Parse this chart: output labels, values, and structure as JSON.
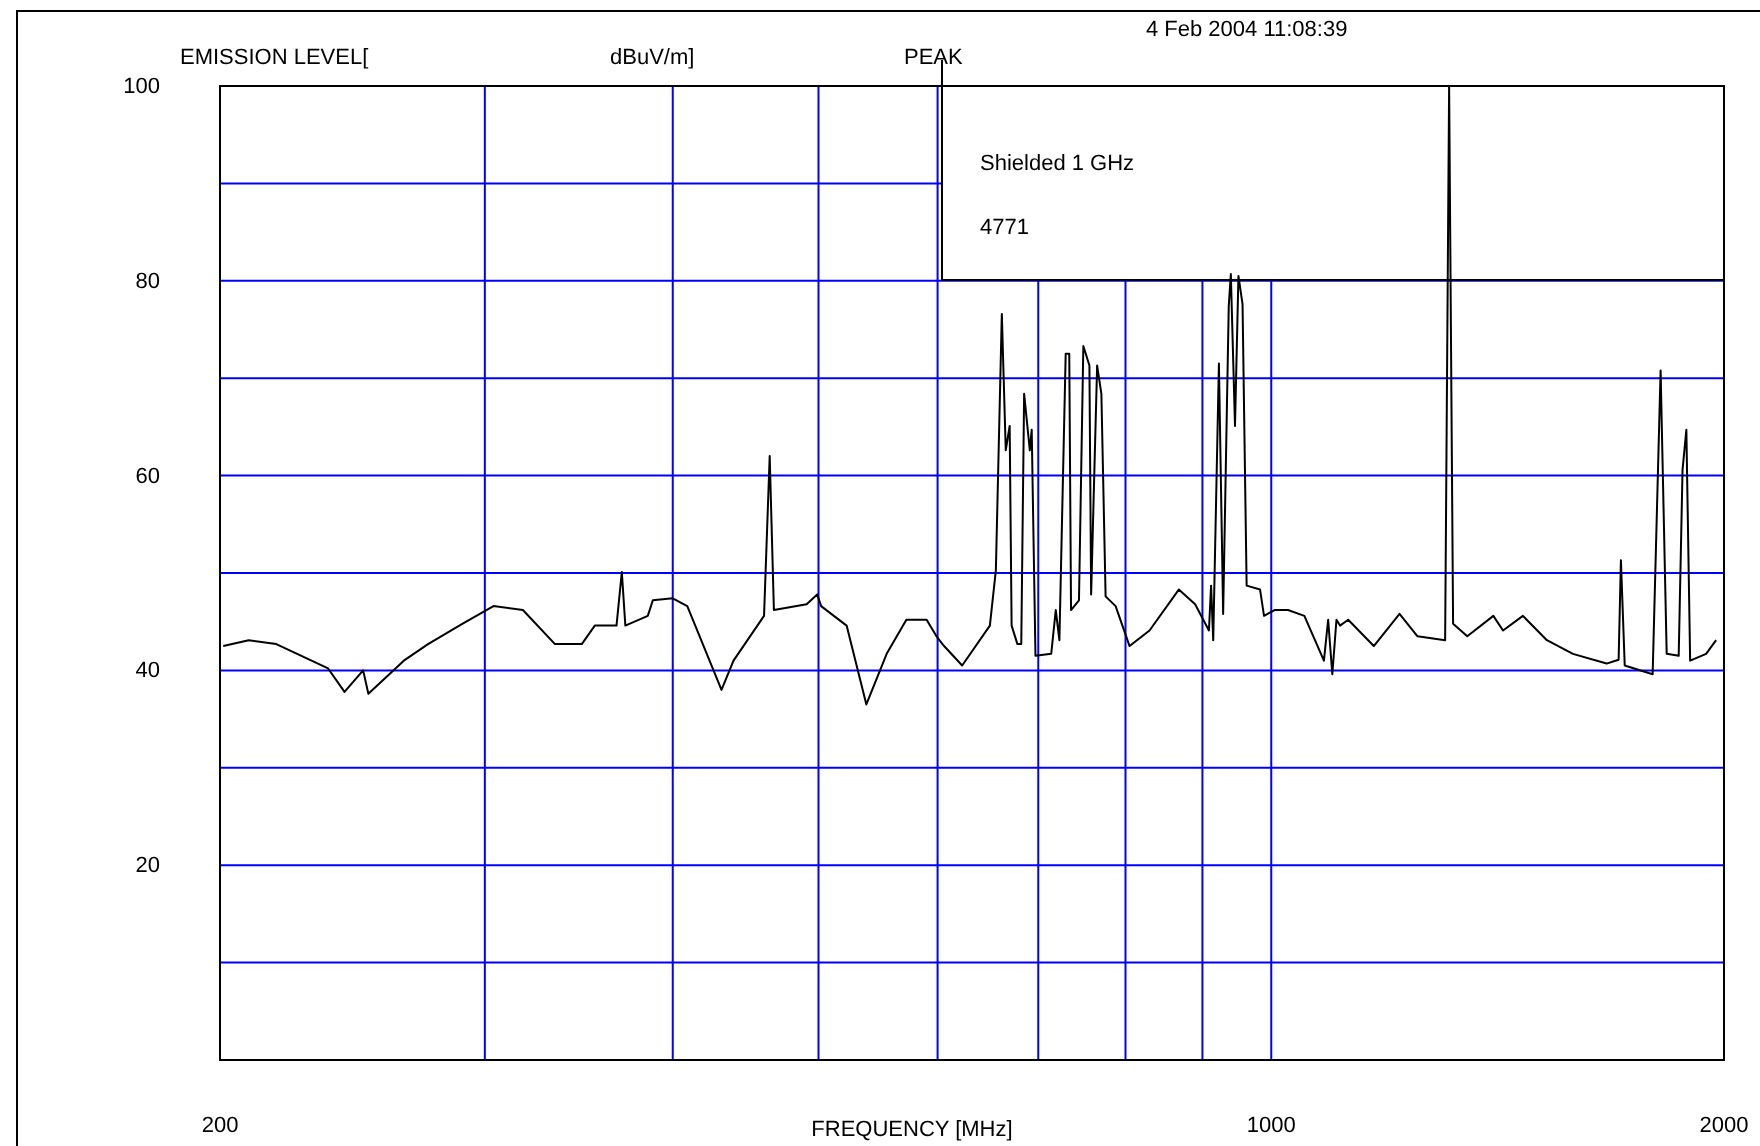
{
  "chart_data": {
    "type": "line",
    "ylabel": "EMISSION LEVEL[",
    "xlabel": "FREQUENCY [MHz]",
    "annotations": [
      "dBuV/m]",
      "PEAK",
      "4 Feb 2004  11:08:39",
      "Shielded 1 GHz",
      "4771"
    ],
    "log": "x",
    "grid": true,
    "xlim": [
      200,
      2000
    ],
    "ylim": [
      0,
      100
    ],
    "xticks": [
      200,
      {
        "value": 300,
        "label": null
      },
      {
        "value": 400,
        "label": null
      },
      {
        "value": 500,
        "label": null
      },
      {
        "value": 600,
        "label": null
      },
      {
        "value": 700,
        "label": null
      },
      {
        "value": 800,
        "label": null
      },
      {
        "value": 900,
        "label": null
      },
      1000,
      2000
    ],
    "yticks": [
      {
        "value": 10,
        "label": null
      },
      20,
      {
        "value": 30,
        "label": null
      },
      40,
      {
        "value": 50,
        "label": null
      },
      60,
      {
        "value": 70,
        "label": null
      },
      80,
      {
        "value": 90,
        "label": null
      },
      100
    ],
    "series": [
      {
        "color": "#000000",
        "x": [
          201,
          209,
          218,
          236,
          242,
          249,
          251,
          265,
          275,
          290,
          304,
          318,
          334,
          348,
          355,
          367,
          370,
          372,
          385,
          388,
          400,
          409,
          431,
          439,
          460,
          464,
          467,
          491,
          499,
          502,
          522,
          538,
          555,
          572,
          590,
          599,
          606,
          623,
          650,
          656,
          662,
          666,
          670,
          672,
          678,
          682,
          685,
          691,
          693,
          697,
          714,
          719,
          723,
          730,
          734,
          736,
          745,
          750,
          757,
          759,
          766,
          771,
          776,
          788,
          805,
          830,
          868,
          890,
          909,
          912,
          915,
          923,
          929,
          937,
          940,
          946,
          951,
          957,
          963,
          983,
          989,
          1005,
          1026,
          1052,
          1084,
          1091,
          1098,
          1105,
          1111,
          1125,
          1170,
          1217,
          1251,
          1305,
          1313,
          1321,
          1350,
          1405,
          1426,
          1470,
          1525,
          1587,
          1671,
          1702,
          1708,
          1718,
          1793,
          1815,
          1832,
          1866,
          1877,
          1888,
          1899,
          1946,
          1976
        ],
        "values": [
          42.5,
          43.1,
          42.7,
          40.2,
          37.8,
          40,
          37.6,
          41,
          42.7,
          44.8,
          46.6,
          46.2,
          42.7,
          42.7,
          44.6,
          44.6,
          50.1,
          44.6,
          45.6,
          47.2,
          47.4,
          46.6,
          38,
          41,
          45.6,
          62,
          46.2,
          46.8,
          47.8,
          46.6,
          44.6,
          36.5,
          41.7,
          45.2,
          45.2,
          43.5,
          42.5,
          40.5,
          44.6,
          50.3,
          76.6,
          62.6,
          65.1,
          44.6,
          42.7,
          42.7,
          68.4,
          62.6,
          64.7,
          41.5,
          41.7,
          46.2,
          43.1,
          72.5,
          72.5,
          46.2,
          47.2,
          73.3,
          71.3,
          47.8,
          71.3,
          68.4,
          47.6,
          46.6,
          42.5,
          44.1,
          48.3,
          46.8,
          44.1,
          48.7,
          43.1,
          71.5,
          45.8,
          77.4,
          80.7,
          65.1,
          80.5,
          77.6,
          48.7,
          48.3,
          45.6,
          46.2,
          46.2,
          45.6,
          41,
          45.2,
          39.6,
          45.2,
          44.6,
          45.2,
          42.5,
          45.8,
          43.5,
          43.1,
          100,
          44.8,
          43.5,
          45.6,
          44.1,
          45.6,
          43.1,
          41.7,
          40.7,
          41.1,
          51.3,
          40.5,
          39.6,
          70.8,
          41.7,
          41.5,
          60.6,
          64.7,
          41,
          41.7,
          43.1
        ]
      }
    ]
  }
}
